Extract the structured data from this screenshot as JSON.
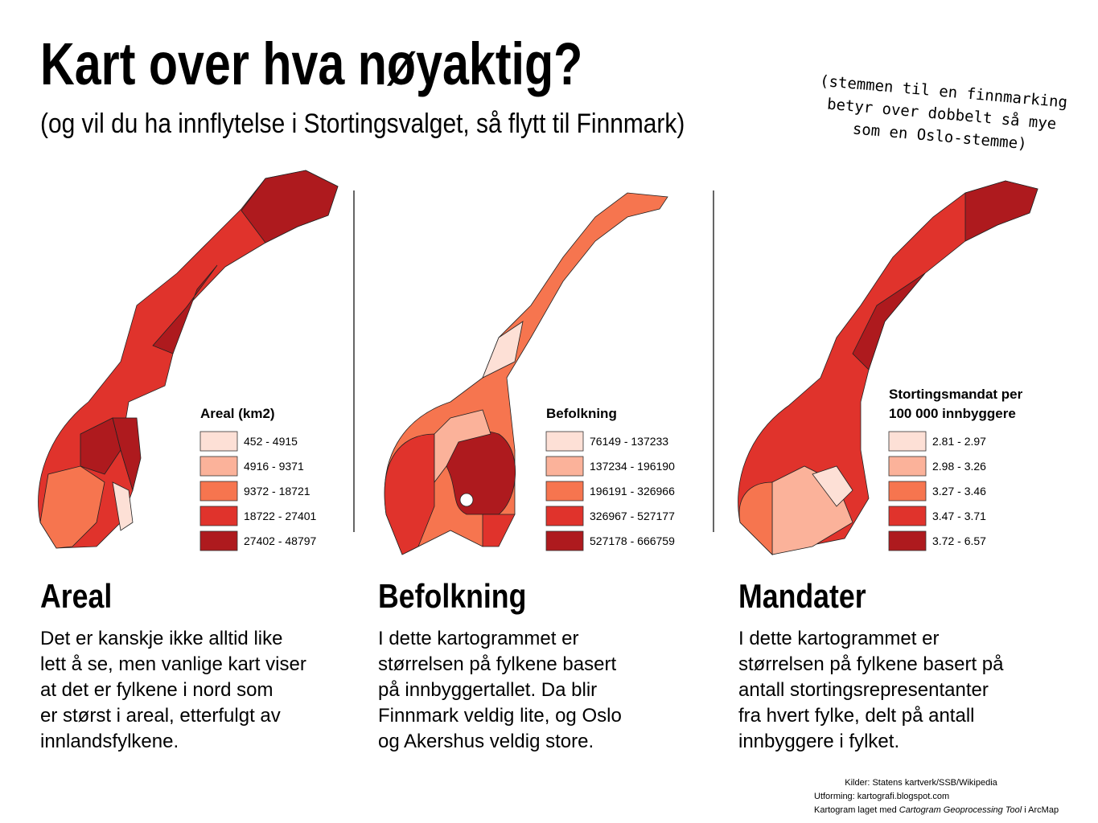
{
  "header": {
    "title": "Kart over hva nøyaktig?",
    "subtitle": "(og vil du ha innflytelse i Stortingsvalget, så flytt til Finnmark)",
    "note": [
      "(stemmen til en finnmarking",
      "betyr over dobbelt så mye",
      "som en Oslo-stemme)"
    ]
  },
  "panels": [
    {
      "legend_title": [
        "Areal (km2)"
      ],
      "legend": [
        {
          "label": "452 - 4915",
          "color": "#fde0d6"
        },
        {
          "label": "4916 - 9371",
          "color": "#fbb29a"
        },
        {
          "label": "9372 - 18721",
          "color": "#f6754f"
        },
        {
          "label": "18722 - 27401",
          "color": "#e0332c"
        },
        {
          "label": "27402 - 48797",
          "color": "#ae1a1e"
        }
      ],
      "heading": "Areal",
      "text": [
        "Det er kanskje ikke alltid like",
        "lett å se, men vanlige kart viser",
        "at det er fylkene i nord som",
        "er størst i areal, etterfulgt av",
        "innlandsfylkene."
      ]
    },
    {
      "legend_title": [
        "Befolkning"
      ],
      "legend": [
        {
          "label": "76149 - 137233",
          "color": "#fde0d6"
        },
        {
          "label": "137234 - 196190",
          "color": "#fbb29a"
        },
        {
          "label": "196191 - 326966",
          "color": "#f6754f"
        },
        {
          "label": "326967 - 527177",
          "color": "#e0332c"
        },
        {
          "label": "527178 - 666759",
          "color": "#ae1a1e"
        }
      ],
      "heading": "Befolkning",
      "text": [
        "I dette kartogrammet er",
        "størrelsen på fylkene basert",
        "på innbyggertallet. Da blir",
        "Finnmark veldig lite, og Oslo",
        "og Akershus veldig store."
      ]
    },
    {
      "legend_title": [
        "Stortingsmandat per",
        "100 000 innbyggere"
      ],
      "legend": [
        {
          "label": "2.81 - 2.97",
          "color": "#fde0d6"
        },
        {
          "label": "2.98 - 3.26",
          "color": "#fbb29a"
        },
        {
          "label": "3.27 - 3.46",
          "color": "#f6754f"
        },
        {
          "label": "3.47 - 3.71",
          "color": "#e0332c"
        },
        {
          "label": "3.72 - 6.57",
          "color": "#ae1a1e"
        }
      ],
      "heading": "Mandater",
      "text": [
        "I dette kartogrammet er",
        "størrelsen på fylkene basert på",
        "antall stortingsrepresentanter",
        "fra hvert fylke, delt på antall",
        "innbyggere i fylket."
      ]
    }
  ],
  "credits": {
    "line1": "Kilder: Statens kartverk/SSB/Wikipedia",
    "line2": "Utforming: kartografi.blogspot.com",
    "line3": [
      "Kartogram laget med ",
      "Cartogram Geoprocessing Tool",
      " i ArcMap"
    ]
  }
}
